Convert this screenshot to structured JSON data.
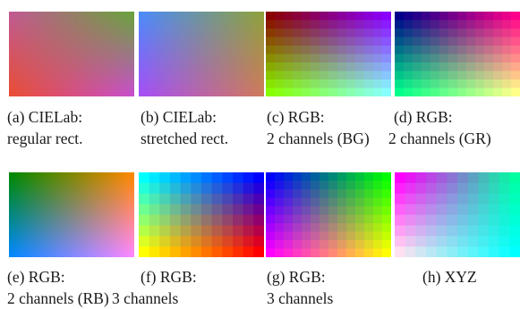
{
  "figure": {
    "panels": [
      {
        "id": "a",
        "caption_line1": "(a) CIELab:",
        "caption_line2": "regular rect.",
        "gradient": {
          "corners": [
            "#c05a93",
            "#6aa33c",
            "#e94e34",
            "#c74fcc"
          ],
          "steps": 0
        }
      },
      {
        "id": "b",
        "caption_line1": "(b) CIELab:",
        "caption_line2": "stretched rect.",
        "gradient": {
          "corners": [
            "#4c8bfa",
            "#8fa13b",
            "#a54ff5",
            "#cf7a5b"
          ],
          "steps": 0
        }
      },
      {
        "id": "c",
        "caption_line1": "(c) RGB:",
        "caption_line2": "2 channels (BG)",
        "gradient": {
          "corners": [
            "#8a0000",
            "#8a00ff",
            "#88ff00",
            "#88ffff"
          ],
          "steps": 14
        }
      },
      {
        "id": "d",
        "caption_line1": "(d) RGB:",
        "caption_line2": "2 channels (GR)",
        "gradient": {
          "corners": [
            "#00008a",
            "#ff008a",
            "#00ff8a",
            "#ffff8a"
          ],
          "steps": 14
        }
      },
      {
        "id": "e",
        "caption_line1": "(e) RGB:",
        "caption_line2": "2 channels (RB)",
        "gradient": {
          "corners": [
            "#008800",
            "#ff8800",
            "#0088ff",
            "#ff88ff"
          ],
          "steps": 0
        }
      },
      {
        "id": "f",
        "caption_line1": "(f) RGB:",
        "caption_line2": "3 channels",
        "gradient": {
          "corners": [
            "#00ffff",
            "#0000ff",
            "#ffff00",
            "#ff0000"
          ],
          "steps": 12
        }
      },
      {
        "id": "g",
        "caption_line1": "(g) RGB:",
        "caption_line2": "3 channels",
        "gradient": {
          "corners": [
            "#0000ff",
            "#00ff00",
            "#ff00ff",
            "#ffff00"
          ],
          "steps": 14
        }
      },
      {
        "id": "h",
        "caption_line1": "(h) XYZ",
        "caption_line2": "",
        "gradient": {
          "corners": [
            "#ff00ff",
            "#00ffa0",
            "#ffe0f0",
            "#00ffff"
          ],
          "steps": 12
        }
      }
    ]
  }
}
